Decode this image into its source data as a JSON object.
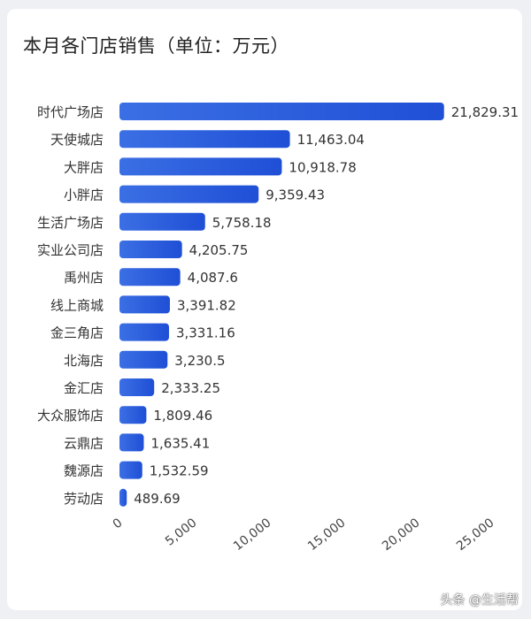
{
  "watermark": "头条 @生活帮",
  "colors": {
    "bar_start": "#3b6fe4",
    "bar_end": "#1f4fd6",
    "label": "#333333",
    "title": "#222222"
  },
  "chart_data": {
    "type": "bar",
    "orientation": "horizontal",
    "title": "本月各门店销售（单位：万元）",
    "categories": [
      "时代广场店",
      "天使城店",
      "大胖店",
      "小胖店",
      "生活广场店",
      "实业公司店",
      "禹州店",
      "线上商城",
      "金三角店",
      "北海店",
      "金汇店",
      "大众服饰店",
      "云鼎店",
      "魏源店",
      "劳动店"
    ],
    "values": [
      21829.31,
      11463.04,
      10918.78,
      9359.43,
      5758.18,
      4205.75,
      4087.6,
      3391.82,
      3331.16,
      3230.5,
      2333.25,
      1809.46,
      1635.41,
      1532.59,
      489.69
    ],
    "value_labels": [
      "21,829.31",
      "11,463.04",
      "10,918.78",
      "9,359.43",
      "5,758.18",
      "4,205.75",
      "4,087.6",
      "3,391.82",
      "3,331.16",
      "3,230.5",
      "2,333.25",
      "1,809.46",
      "1,635.41",
      "1,532.59",
      "489.69"
    ],
    "x_ticks": [
      0,
      5000,
      10000,
      15000,
      20000,
      25000
    ],
    "x_tick_labels": [
      "0",
      "5,000",
      "10,000",
      "15,000",
      "20,000",
      "25,000"
    ],
    "xlim": [
      0,
      25000
    ],
    "grid": false,
    "legend": "none"
  }
}
